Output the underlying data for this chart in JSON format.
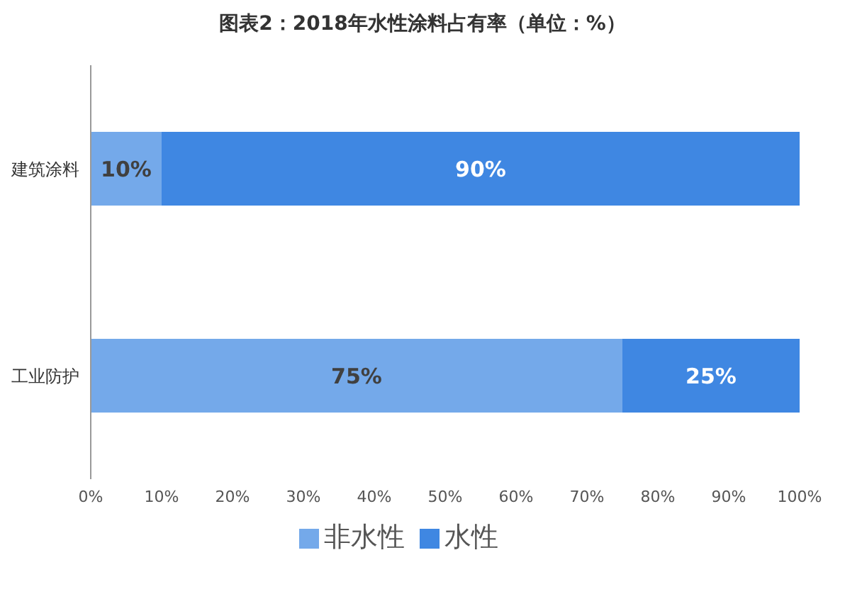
{
  "chart_data": {
    "type": "bar",
    "orientation": "horizontal",
    "stacked": true,
    "title": "图表2：2018年水性涂料占有率（单位：%）",
    "categories": [
      "建筑涂料",
      "工业防护"
    ],
    "series": [
      {
        "name": "非水性",
        "color": "#74a9ea",
        "values": [
          10,
          75
        ],
        "value_labels": [
          "10%",
          "75%"
        ]
      },
      {
        "name": "水性",
        "color": "#3f87e2",
        "values": [
          90,
          25
        ],
        "value_labels": [
          "90%",
          "25%"
        ]
      }
    ],
    "xlim": [
      0,
      100
    ],
    "xticks": [
      {
        "value": 0,
        "label": "0%"
      },
      {
        "value": 10,
        "label": "10%"
      },
      {
        "value": 20,
        "label": "20%"
      },
      {
        "value": 30,
        "label": "30%"
      },
      {
        "value": 40,
        "label": "40%"
      },
      {
        "value": 50,
        "label": "50%"
      },
      {
        "value": 60,
        "label": "60%"
      },
      {
        "value": 70,
        "label": "70%"
      },
      {
        "value": 80,
        "label": "80%"
      },
      {
        "value": 90,
        "label": "90%"
      },
      {
        "value": 100,
        "label": "100%"
      }
    ],
    "grid": false,
    "legend": "bottom"
  }
}
